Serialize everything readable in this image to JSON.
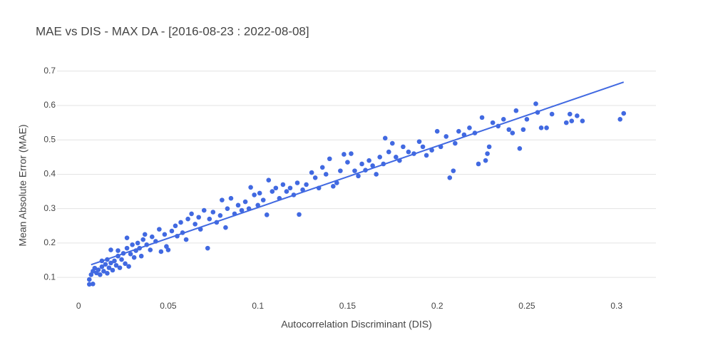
{
  "chart_data": {
    "type": "scatter",
    "title": "MAE vs DIS - MAX DA - [2016-08-23 : 2022-08-08]",
    "x_label": "Autocorrelation Discriminant (DIS)",
    "y_label": "Mean Absolute Error (MAE)",
    "color": "#4169e1",
    "grid": true,
    "xlim": [
      -0.012,
      0.322
    ],
    "ylim": [
      0.036,
      0.741
    ],
    "xticks": [
      0,
      0.05,
      0.1,
      0.15,
      0.2,
      0.25,
      0.3
    ],
    "yticks": [
      0.1,
      0.2,
      0.3,
      0.4,
      0.5,
      0.6,
      0.7
    ],
    "x": [
      0.006,
      0.006,
      0.007,
      0.008,
      0.008,
      0.009,
      0.01,
      0.011,
      0.012,
      0.013,
      0.013,
      0.014,
      0.015,
      0.016,
      0.016,
      0.017,
      0.018,
      0.018,
      0.019,
      0.02,
      0.021,
      0.022,
      0.022,
      0.023,
      0.024,
      0.025,
      0.026,
      0.027,
      0.027,
      0.028,
      0.029,
      0.03,
      0.031,
      0.032,
      0.033,
      0.034,
      0.035,
      0.036,
      0.037,
      0.038,
      0.04,
      0.041,
      0.043,
      0.045,
      0.046,
      0.048,
      0.049,
      0.05,
      0.052,
      0.054,
      0.055,
      0.057,
      0.058,
      0.06,
      0.061,
      0.063,
      0.065,
      0.067,
      0.068,
      0.07,
      0.072,
      0.073,
      0.075,
      0.077,
      0.079,
      0.08,
      0.082,
      0.083,
      0.085,
      0.087,
      0.089,
      0.091,
      0.093,
      0.095,
      0.096,
      0.098,
      0.1,
      0.101,
      0.103,
      0.105,
      0.106,
      0.108,
      0.11,
      0.112,
      0.114,
      0.116,
      0.118,
      0.12,
      0.122,
      0.123,
      0.125,
      0.127,
      0.13,
      0.132,
      0.134,
      0.136,
      0.138,
      0.14,
      0.142,
      0.144,
      0.146,
      0.148,
      0.15,
      0.152,
      0.154,
      0.156,
      0.158,
      0.16,
      0.162,
      0.164,
      0.166,
      0.168,
      0.17,
      0.171,
      0.173,
      0.175,
      0.177,
      0.179,
      0.181,
      0.184,
      0.187,
      0.19,
      0.192,
      0.194,
      0.197,
      0.2,
      0.202,
      0.205,
      0.207,
      0.209,
      0.21,
      0.212,
      0.215,
      0.218,
      0.221,
      0.223,
      0.225,
      0.227,
      0.228,
      0.229,
      0.231,
      0.234,
      0.237,
      0.24,
      0.242,
      0.244,
      0.246,
      0.248,
      0.25,
      0.255,
      0.256,
      0.258,
      0.261,
      0.264,
      0.272,
      0.274,
      0.275,
      0.278,
      0.281,
      0.302,
      0.304
    ],
    "y": [
      0.08,
      0.094,
      0.108,
      0.081,
      0.118,
      0.127,
      0.113,
      0.122,
      0.108,
      0.131,
      0.148,
      0.118,
      0.138,
      0.112,
      0.152,
      0.128,
      0.142,
      0.18,
      0.121,
      0.148,
      0.135,
      0.162,
      0.178,
      0.128,
      0.152,
      0.17,
      0.14,
      0.185,
      0.215,
      0.132,
      0.168,
      0.195,
      0.158,
      0.178,
      0.2,
      0.185,
      0.162,
      0.21,
      0.225,
      0.195,
      0.18,
      0.218,
      0.205,
      0.24,
      0.175,
      0.225,
      0.19,
      0.18,
      0.235,
      0.25,
      0.22,
      0.26,
      0.23,
      0.21,
      0.27,
      0.285,
      0.255,
      0.275,
      0.24,
      0.295,
      0.185,
      0.27,
      0.29,
      0.26,
      0.28,
      0.325,
      0.245,
      0.3,
      0.33,
      0.285,
      0.31,
      0.295,
      0.32,
      0.3,
      0.362,
      0.34,
      0.31,
      0.345,
      0.325,
      0.282,
      0.383,
      0.35,
      0.36,
      0.33,
      0.37,
      0.35,
      0.36,
      0.34,
      0.375,
      0.283,
      0.355,
      0.37,
      0.405,
      0.39,
      0.36,
      0.42,
      0.4,
      0.445,
      0.365,
      0.375,
      0.41,
      0.458,
      0.435,
      0.46,
      0.41,
      0.395,
      0.43,
      0.412,
      0.44,
      0.425,
      0.4,
      0.45,
      0.43,
      0.505,
      0.465,
      0.49,
      0.45,
      0.44,
      0.48,
      0.465,
      0.46,
      0.495,
      0.48,
      0.455,
      0.47,
      0.525,
      0.48,
      0.51,
      0.39,
      0.41,
      0.49,
      0.525,
      0.515,
      0.535,
      0.52,
      0.43,
      0.565,
      0.44,
      0.46,
      0.48,
      0.55,
      0.54,
      0.56,
      0.53,
      0.52,
      0.585,
      0.475,
      0.53,
      0.56,
      0.605,
      0.58,
      0.535,
      0.535,
      0.575,
      0.55,
      0.575,
      0.555,
      0.57,
      0.555,
      0.56,
      0.577
    ],
    "trendline": {
      "x": [
        0.007,
        0.304
      ],
      "y": [
        0.137,
        0.668
      ]
    }
  }
}
